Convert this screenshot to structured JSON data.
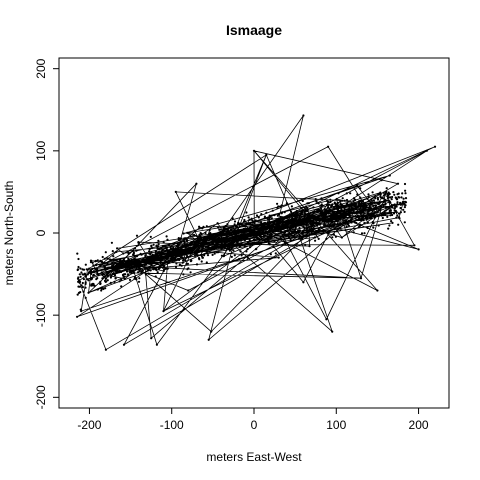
{
  "chart_data": {
    "type": "scatter",
    "title": "Ismaage",
    "xlabel": "meters East-West",
    "ylabel": "meters North-South",
    "xlim": [
      -237,
      237
    ],
    "ylim": [
      -213,
      213
    ],
    "xticks": [
      -200,
      -100,
      0,
      100,
      200
    ],
    "yticks": [
      -200,
      -100,
      0,
      100,
      200
    ],
    "grid": false,
    "legend": "none",
    "points_connected_by_lines": true,
    "series": [
      {
        "trend_x": [
          -210,
          -150,
          -90,
          -30,
          30,
          90,
          150,
          200
        ],
        "trend_y": [
          -55,
          -40,
          -25,
          -8,
          8,
          20,
          32,
          38
        ]
      }
    ],
    "outliers": [
      [
        -180,
        -142
      ],
      [
        -158,
        -136
      ],
      [
        -118,
        -136
      ],
      [
        -125,
        -128
      ],
      [
        -55,
        -130
      ],
      [
        -52,
        -120
      ],
      [
        -95,
        50
      ],
      [
        -70,
        60
      ],
      [
        60,
        143
      ],
      [
        90,
        105
      ],
      [
        95,
        -120
      ],
      [
        88,
        -105
      ],
      [
        165,
        70
      ],
      [
        175,
        60
      ],
      [
        220,
        105
      ],
      [
        210,
        100
      ],
      [
        200,
        -20
      ],
      [
        195,
        -15
      ],
      [
        -215,
        -102
      ],
      [
        -210,
        -95
      ],
      [
        60,
        -60
      ],
      [
        30,
        -30
      ],
      [
        130,
        -55
      ],
      [
        150,
        -70
      ],
      [
        0,
        100
      ],
      [
        15,
        95
      ],
      [
        -80,
        -70
      ],
      [
        -110,
        -95
      ]
    ],
    "colors": {
      "points": "#000000",
      "lines": "#000000",
      "background": "#ffffff"
    }
  }
}
